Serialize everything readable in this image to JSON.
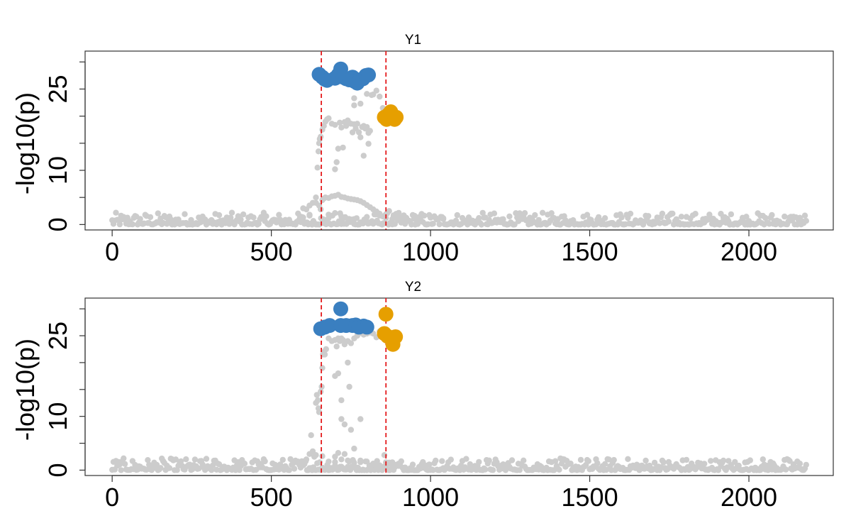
{
  "chart_data": [
    {
      "type": "scatter",
      "title": "Y1",
      "xlabel": "",
      "ylabel": "-log10(p)",
      "xlim": [
        -85,
        2265
      ],
      "ylim": [
        -1,
        32
      ],
      "x_ticks": [
        0,
        500,
        1000,
        1500,
        2000
      ],
      "x_tick_labels": [
        "0",
        "500",
        "1000",
        "1500",
        "2000"
      ],
      "y_ticks": [
        0,
        5,
        10,
        15,
        20,
        25,
        30
      ],
      "y_tick_labels": [
        "0",
        "",
        "10",
        "",
        "",
        "25",
        ""
      ],
      "vlines": [
        657,
        860
      ],
      "vline_color": "#e41a1c",
      "background_color": "#cccccc",
      "highlight_series": [
        {
          "color": "#3a7fc0",
          "points": [
            [
              650,
              27.7
            ],
            [
              660,
              27.2
            ],
            [
              668,
              26.8
            ],
            [
              675,
              26.6
            ],
            [
              700,
              27.0
            ],
            [
              710,
              27.6
            ],
            [
              718,
              28.7
            ],
            [
              725,
              27.2
            ],
            [
              735,
              26.9
            ],
            [
              745,
              26.7
            ],
            [
              755,
              27.2
            ],
            [
              762,
              26.4
            ],
            [
              770,
              26.1
            ],
            [
              778,
              26.7
            ],
            [
              788,
              26.9
            ],
            [
              797,
              27.5
            ],
            [
              805,
              27.6
            ]
          ]
        },
        {
          "color": "#e69f00",
          "points": [
            [
              855,
              19.8
            ],
            [
              862,
              19.4
            ],
            [
              868,
              20.3
            ],
            [
              875,
              20.8
            ],
            [
              880,
              19.6
            ],
            [
              887,
              19.4
            ],
            [
              892,
              19.8
            ]
          ]
        }
      ]
    },
    {
      "type": "scatter",
      "title": "Y2",
      "xlabel": "",
      "ylabel": "-log10(p)",
      "xlim": [
        -85,
        2265
      ],
      "ylim": [
        -1,
        32
      ],
      "x_ticks": [
        0,
        500,
        1000,
        1500,
        2000
      ],
      "x_tick_labels": [
        "0",
        "500",
        "1000",
        "1500",
        "2000"
      ],
      "y_ticks": [
        0,
        5,
        10,
        15,
        20,
        25,
        30
      ],
      "y_tick_labels": [
        "0",
        "",
        "10",
        "",
        "",
        "25",
        ""
      ],
      "vlines": [
        657,
        860
      ],
      "vline_color": "#e41a1c",
      "background_color": "#cccccc",
      "highlight_series": [
        {
          "color": "#3a7fc0",
          "points": [
            [
              655,
              26.3
            ],
            [
              668,
              26.6
            ],
            [
              683,
              26.9
            ],
            [
              718,
              30.0
            ],
            [
              718,
              26.9
            ],
            [
              735,
              26.9
            ],
            [
              755,
              26.9
            ],
            [
              765,
              27.0
            ],
            [
              775,
              26.6
            ],
            [
              790,
              26.8
            ],
            [
              800,
              26.6
            ]
          ]
        },
        {
          "color": "#e69f00",
          "points": [
            [
              860,
              29.0
            ],
            [
              855,
              25.4
            ],
            [
              865,
              24.9
            ],
            [
              875,
              24.6
            ],
            [
              882,
              23.4
            ],
            [
              890,
              24.8
            ]
          ]
        }
      ]
    }
  ]
}
